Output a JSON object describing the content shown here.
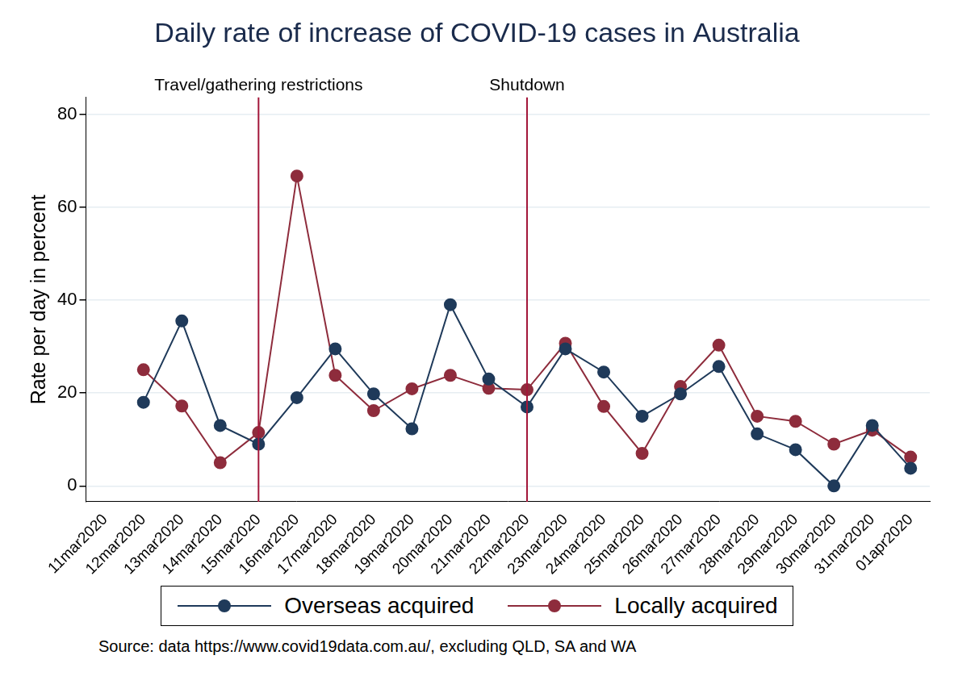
{
  "chart_data": {
    "type": "line",
    "title": "Daily rate of increase of COVID-19 cases in Australia",
    "y_label": "Rate per day in percent",
    "categories": [
      "11mar2020",
      "12mar2020",
      "13mar2020",
      "14mar2020",
      "15mar2020",
      "16mar2020",
      "17mar2020",
      "18mar2020",
      "19mar2020",
      "20mar2020",
      "21mar2020",
      "22mar2020",
      "23mar2020",
      "24mar2020",
      "25mar2020",
      "26mar2020",
      "27mar2020",
      "28mar2020",
      "29mar2020",
      "30mar2020",
      "31mar2020",
      "01apr2020"
    ],
    "series": [
      {
        "name": "Overseas acquired",
        "color": "#1f3a5a",
        "marker": "circle",
        "values": [
          null,
          18,
          35.5,
          13,
          9,
          19,
          29.5,
          19.8,
          12.3,
          39,
          23,
          17,
          29.5,
          24.5,
          15,
          19.8,
          25.7,
          11.2,
          7.8,
          0,
          13,
          3.8
        ]
      },
      {
        "name": "Locally acquired",
        "color": "#8e2c3c",
        "marker": "circle",
        "values": [
          null,
          25,
          17.2,
          5,
          11.5,
          66.7,
          23.8,
          16.2,
          20.9,
          23.8,
          21,
          20.7,
          30.7,
          17.1,
          7,
          21.4,
          30.3,
          15,
          13.9,
          9,
          12,
          6.2
        ]
      }
    ],
    "annotations": [
      {
        "x": "15mar2020",
        "label": "Travel/gathering restrictions"
      },
      {
        "x": "22mar2020",
        "label": "Shutdown"
      }
    ],
    "ylim": [
      -3.4,
      83.6
    ],
    "yticks": [
      0,
      20,
      40,
      60,
      80
    ],
    "grid": true,
    "legend": "bottom",
    "source": "Source: data https://www.covid19data.com.au/, excluding QLD, SA and WA"
  }
}
